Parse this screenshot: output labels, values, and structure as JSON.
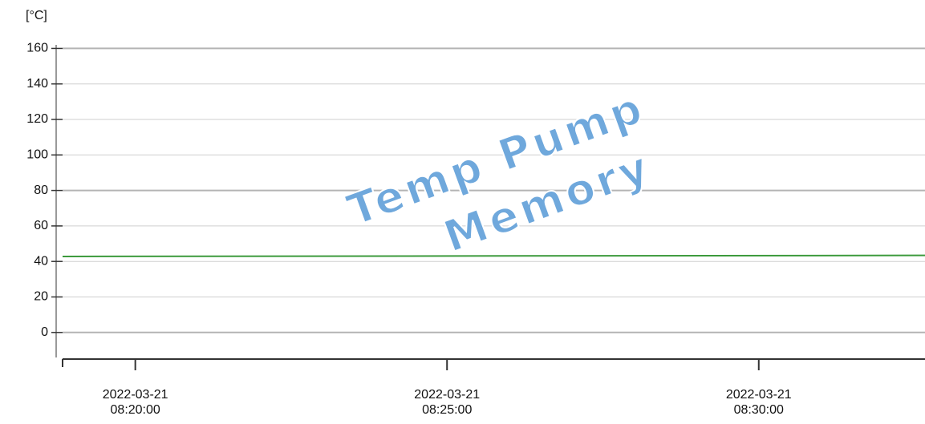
{
  "chart_data": {
    "type": "line",
    "y_label": "[°C]",
    "watermark": [
      "Temp Pump",
      "Memory"
    ],
    "x": [
      "2022-03-21 08:18:50",
      "2022-03-21 08:32:40"
    ],
    "series": [
      {
        "name": "Temp Pump",
        "color": "#3c9a3c",
        "values": [
          42.8,
          43.4
        ]
      }
    ],
    "xlim": [
      "2022-03-21 08:18:50",
      "2022-03-21 08:32:40"
    ],
    "xticks": [
      "2022-03-21 08:20:00",
      "2022-03-21 08:25:00",
      "2022-03-21 08:30:00"
    ],
    "ylim": [
      -15,
      162
    ],
    "yticks": [
      0,
      20,
      40,
      60,
      80,
      100,
      120,
      140,
      160
    ],
    "grid": true
  }
}
